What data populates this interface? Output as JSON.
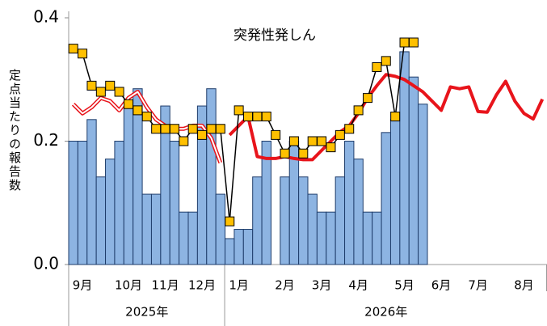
{
  "chart_data": {
    "type": "bar",
    "title": "突発性発しん",
    "y_label": "定点当たりの報告数",
    "category_groups": [
      {
        "name": "2025年",
        "categories": [
          null,
          "9月",
          null,
          null,
          null,
          null,
          "10月",
          null,
          null,
          null,
          "11月",
          null,
          null,
          null,
          "12月",
          null,
          null
        ]
      },
      {
        "name": "2026年",
        "categories": [
          null,
          "1月",
          null,
          null,
          null,
          null,
          "2月",
          null,
          null,
          null,
          "3月",
          null,
          null,
          null,
          "4月",
          null,
          null,
          null,
          null,
          "5月",
          null,
          null,
          null,
          "6月",
          null,
          null,
          null,
          "7月",
          null,
          null,
          null,
          null,
          "8月",
          null,
          null
        ]
      }
    ],
    "ylim": [
      0,
      0.4
    ],
    "yticks": [
      {
        "value": 0,
        "label": "0.0"
      },
      0.2,
      0.4
    ],
    "series": [
      {
        "type": "bar",
        "color": "#8db4e2",
        "edge": "#1f3d6b",
        "values": [
          0.2,
          0.2,
          0.235,
          0.142,
          0.171,
          0.2,
          0.257,
          0.285,
          0.114,
          0.114,
          0.257,
          0.2,
          0.085,
          0.085,
          0.257,
          0.285,
          0.114,
          0.042,
          0.057,
          0.057,
          0.142,
          0.2,
          0,
          0.142,
          0.2,
          0.142,
          0.114,
          0.085,
          0.085,
          0.142,
          0.2,
          0.171,
          0.085,
          0.085,
          0.214,
          0.235,
          0.345,
          0.304,
          0.26,
          null,
          null,
          null,
          null,
          null,
          null,
          null,
          null,
          null,
          null,
          null,
          null,
          null
        ]
      },
      {
        "type": "line",
        "color": "#e8141b",
        "line_style": "double",
        "values": [
          0.26,
          0.245,
          0.255,
          0.27,
          0.265,
          0.25,
          0.27,
          0.28,
          0.255,
          0.235,
          0.225,
          0.22,
          0.22,
          0.225,
          0.225,
          0.205,
          0.165,
          null,
          null,
          null,
          null,
          null,
          null,
          null,
          null,
          null,
          null,
          null,
          null,
          null,
          null,
          null,
          null,
          null,
          null,
          null,
          null,
          null,
          null,
          null,
          null,
          null,
          null,
          null,
          null,
          null,
          null,
          null,
          null,
          null,
          null,
          null
        ]
      },
      {
        "type": "line",
        "color": "#e8141b",
        "line_style": "thick",
        "values": [
          null,
          null,
          null,
          null,
          null,
          null,
          null,
          null,
          null,
          null,
          null,
          null,
          null,
          null,
          null,
          null,
          null,
          0.21,
          0.225,
          0.24,
          0.175,
          0.172,
          0.172,
          0.175,
          0.172,
          0.17,
          0.17,
          0.185,
          0.2,
          0.215,
          0.225,
          0.245,
          0.27,
          0.29,
          0.308,
          0.305,
          0.3,
          0.29,
          0.28,
          0.265,
          0.25,
          0.288,
          0.285,
          0.288,
          0.248,
          0.247,
          0.275,
          0.297,
          0.265,
          0.245,
          0.236,
          0.268
        ]
      },
      {
        "type": "line",
        "color": "#000000",
        "line_style": "thin",
        "marker": "square",
        "marker_color": "#ffc000",
        "values": [
          0.35,
          0.342,
          0.29,
          0.28,
          0.29,
          0.28,
          0.26,
          0.25,
          0.24,
          0.22,
          0.22,
          0.22,
          0.2,
          0.22,
          0.21,
          0.22,
          0.22,
          0.07,
          0.25,
          0.24,
          0.24,
          0.24,
          0.21,
          0.18,
          0.2,
          0.18,
          0.2,
          0.2,
          0.19,
          0.21,
          0.22,
          0.25,
          0.27,
          0.32,
          0.33,
          0.24,
          0.36,
          0.36,
          null,
          null,
          null,
          null,
          null,
          null,
          null,
          null,
          null,
          null,
          null,
          null,
          null,
          null
        ]
      }
    ]
  }
}
